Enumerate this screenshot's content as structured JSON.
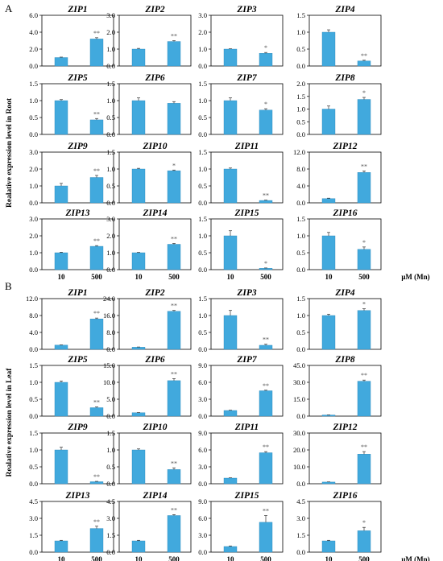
{
  "chart_data": {
    "type": "bar",
    "bar_color": "#41a9dd",
    "categories": [
      "10",
      "500"
    ],
    "unit_label": "μM (Mn)",
    "sections": [
      {
        "letter": "A",
        "ylabel": "Realative expression level in Root",
        "plots": [
          {
            "title": "ZIP1",
            "values": [
              1.0,
              3.2
            ],
            "errors": [
              0.05,
              0.15
            ],
            "sig": [
              "",
              "**"
            ],
            "ticks": [
              "0.0",
              "2.0",
              "4.0",
              "6.0"
            ],
            "ylim": [
              0,
              6
            ]
          },
          {
            "title": "ZIP2",
            "values": [
              1.0,
              1.45
            ],
            "errors": [
              0.04,
              0.05
            ],
            "sig": [
              "",
              "**"
            ],
            "ticks": [
              "0.0",
              "1.0",
              "2.0",
              "3.0"
            ],
            "ylim": [
              0,
              3
            ]
          },
          {
            "title": "ZIP3",
            "values": [
              1.0,
              0.75
            ],
            "errors": [
              0.02,
              0.05
            ],
            "sig": [
              "",
              "*"
            ],
            "ticks": [
              "0.0",
              "1.0",
              "2.0",
              "3.0"
            ],
            "ylim": [
              0,
              3
            ]
          },
          {
            "title": "ZIP4",
            "values": [
              1.0,
              0.15
            ],
            "errors": [
              0.07,
              0.02
            ],
            "sig": [
              "",
              "**"
            ],
            "ticks": [
              "0.0",
              "0.5",
              "1.0",
              "1.5"
            ],
            "ylim": [
              0,
              1.5
            ]
          },
          {
            "title": "ZIP5",
            "values": [
              1.0,
              0.43
            ],
            "errors": [
              0.03,
              0.04
            ],
            "sig": [
              "",
              "**"
            ],
            "ticks": [
              "0.0",
              "0.5",
              "1.0",
              "1.5"
            ],
            "ylim": [
              0,
              1.5
            ]
          },
          {
            "title": "ZIP6",
            "values": [
              1.0,
              0.92
            ],
            "errors": [
              0.08,
              0.05
            ],
            "sig": [
              "",
              ""
            ],
            "ticks": [
              "0.0",
              "0.5",
              "1.0",
              "1.5"
            ],
            "ylim": [
              0,
              1.5
            ]
          },
          {
            "title": "ZIP7",
            "values": [
              1.0,
              0.72
            ],
            "errors": [
              0.08,
              0.04
            ],
            "sig": [
              "",
              "*"
            ],
            "ticks": [
              "0.0",
              "0.5",
              "1.0",
              "1.5"
            ],
            "ylim": [
              0,
              1.5
            ]
          },
          {
            "title": "ZIP8",
            "values": [
              1.0,
              1.38
            ],
            "errors": [
              0.12,
              0.08
            ],
            "sig": [
              "",
              "*"
            ],
            "ticks": [
              "0.0",
              "0.5",
              "1.0",
              "1.5",
              "2.0"
            ],
            "ylim": [
              0,
              2
            ]
          },
          {
            "title": "ZIP9",
            "values": [
              1.0,
              1.5
            ],
            "errors": [
              0.15,
              0.12
            ],
            "sig": [
              "",
              "**"
            ],
            "ticks": [
              "0.0",
              "1.0",
              "2.0",
              "3.0"
            ],
            "ylim": [
              0,
              3
            ]
          },
          {
            "title": "ZIP10",
            "values": [
              1.0,
              0.95
            ],
            "errors": [
              0.02,
              0.02
            ],
            "sig": [
              "",
              "*"
            ],
            "ticks": [
              "0.0",
              "0.5",
              "1.0",
              "1.5"
            ],
            "ylim": [
              0,
              1.5
            ]
          },
          {
            "title": "ZIP11",
            "values": [
              1.0,
              0.07
            ],
            "errors": [
              0.03,
              0.01
            ],
            "sig": [
              "",
              "**"
            ],
            "ticks": [
              "0.0",
              "0.5",
              "1.0",
              "1.5"
            ],
            "ylim": [
              0,
              1.5
            ]
          },
          {
            "title": "ZIP12",
            "values": [
              1.0,
              7.2
            ],
            "errors": [
              0.1,
              0.35
            ],
            "sig": [
              "",
              "**"
            ],
            "ticks": [
              "0.0",
              "4.0",
              "8.0",
              "12.0"
            ],
            "ylim": [
              0,
              12
            ]
          },
          {
            "title": "ZIP13",
            "values": [
              1.0,
              1.38
            ],
            "errors": [
              0.03,
              0.04
            ],
            "sig": [
              "",
              "**"
            ],
            "ticks": [
              "0.0",
              "1.0",
              "2.0",
              "3.0"
            ],
            "ylim": [
              0,
              3
            ]
          },
          {
            "title": "ZIP14",
            "values": [
              1.0,
              1.5
            ],
            "errors": [
              0.02,
              0.05
            ],
            "sig": [
              "",
              "**"
            ],
            "ticks": [
              "0.0",
              "1.0",
              "2.0",
              "3.0"
            ],
            "ylim": [
              0,
              3
            ]
          },
          {
            "title": "ZIP15",
            "values": [
              1.0,
              0.04
            ],
            "errors": [
              0.15,
              0.01
            ],
            "sig": [
              "",
              "*"
            ],
            "ticks": [
              "0.0",
              "0.5",
              "1.0",
              "1.5"
            ],
            "ylim": [
              0,
              1.5
            ]
          },
          {
            "title": "ZIP16",
            "values": [
              1.0,
              0.6
            ],
            "errors": [
              0.1,
              0.07
            ],
            "sig": [
              "",
              "*"
            ],
            "ticks": [
              "0.0",
              "0.5",
              "1.0",
              "1.5"
            ],
            "ylim": [
              0,
              1.5
            ]
          }
        ]
      },
      {
        "letter": "B",
        "ylabel": "Realative expression level in Leaf",
        "plots": [
          {
            "title": "ZIP1",
            "values": [
              1.0,
              7.2
            ],
            "errors": [
              0.05,
              0.2
            ],
            "sig": [
              "",
              "**"
            ],
            "ticks": [
              "0.0",
              "4.0",
              "8.0",
              "12.0"
            ],
            "ylim": [
              0,
              12
            ]
          },
          {
            "title": "ZIP2",
            "values": [
              1.0,
              18.0
            ],
            "errors": [
              0.1,
              0.4
            ],
            "sig": [
              "",
              "**"
            ],
            "ticks": [
              "0.0",
              "8.0",
              "16.0",
              "24.0"
            ],
            "ylim": [
              0,
              24
            ]
          },
          {
            "title": "ZIP3",
            "values": [
              1.0,
              0.12
            ],
            "errors": [
              0.15,
              0.03
            ],
            "sig": [
              "",
              "**"
            ],
            "ticks": [
              "0.0",
              "0.5",
              "1.0",
              "1.5"
            ],
            "ylim": [
              0,
              1.5
            ]
          },
          {
            "title": "ZIP4",
            "values": [
              1.0,
              1.15
            ],
            "errors": [
              0.04,
              0.05
            ],
            "sig": [
              "",
              "*"
            ],
            "ticks": [
              "0.0",
              "0.5",
              "1.0",
              "1.5"
            ],
            "ylim": [
              0,
              1.5
            ]
          },
          {
            "title": "ZIP5",
            "values": [
              1.0,
              0.25
            ],
            "errors": [
              0.04,
              0.02
            ],
            "sig": [
              "",
              "**"
            ],
            "ticks": [
              "0.0",
              "0.5",
              "1.0",
              "1.5"
            ],
            "ylim": [
              0,
              1.5
            ]
          },
          {
            "title": "ZIP6",
            "values": [
              1.0,
              10.5
            ],
            "errors": [
              0.05,
              0.6
            ],
            "sig": [
              "",
              "**"
            ],
            "ticks": [
              "0.0",
              "5.0",
              "10.0",
              "15.0"
            ],
            "ylim": [
              0,
              15
            ]
          },
          {
            "title": "ZIP7",
            "values": [
              1.0,
              4.5
            ],
            "errors": [
              0.05,
              0.1
            ],
            "sig": [
              "",
              "**"
            ],
            "ticks": [
              "0.0",
              "3.0",
              "6.0",
              "9.0"
            ],
            "ylim": [
              0,
              9
            ]
          },
          {
            "title": "ZIP8",
            "values": [
              1.0,
              31.0
            ],
            "errors": [
              0.1,
              1.0
            ],
            "sig": [
              "",
              "**"
            ],
            "ticks": [
              "0.0",
              "15.0",
              "30.0",
              "45.0"
            ],
            "ylim": [
              0,
              45
            ]
          },
          {
            "title": "ZIP9",
            "values": [
              1.0,
              0.06
            ],
            "errors": [
              0.08,
              0.01
            ],
            "sig": [
              "",
              "**"
            ],
            "ticks": [
              "0.0",
              "0.5",
              "1.0",
              "1.5"
            ],
            "ylim": [
              0,
              1.5
            ]
          },
          {
            "title": "ZIP10",
            "values": [
              1.0,
              0.42
            ],
            "errors": [
              0.03,
              0.05
            ],
            "sig": [
              "",
              "**"
            ],
            "ticks": [
              "0.0",
              "0.5",
              "1.0",
              "1.5"
            ],
            "ylim": [
              0,
              1.5
            ]
          },
          {
            "title": "ZIP11",
            "values": [
              1.0,
              5.5
            ],
            "errors": [
              0.05,
              0.2
            ],
            "sig": [
              "",
              "**"
            ],
            "ticks": [
              "0.0",
              "3.0",
              "6.0",
              "9.0"
            ],
            "ylim": [
              0,
              9
            ]
          },
          {
            "title": "ZIP12",
            "values": [
              1.0,
              17.5
            ],
            "errors": [
              0.1,
              1.5
            ],
            "sig": [
              "",
              "**"
            ],
            "ticks": [
              "0.0",
              "10.0",
              "20.0",
              "30.0"
            ],
            "ylim": [
              0,
              30
            ]
          },
          {
            "title": "ZIP13",
            "values": [
              1.0,
              2.1
            ],
            "errors": [
              0.05,
              0.2
            ],
            "sig": [
              "",
              "**"
            ],
            "ticks": [
              "0.0",
              "1.5",
              "3.0",
              "4.5"
            ],
            "ylim": [
              0,
              4.5
            ]
          },
          {
            "title": "ZIP14",
            "values": [
              1.0,
              3.25
            ],
            "errors": [
              0.05,
              0.08
            ],
            "sig": [
              "",
              "**"
            ],
            "ticks": [
              "0.0",
              "1.5",
              "3.0",
              "4.5"
            ],
            "ylim": [
              0,
              4.5
            ]
          },
          {
            "title": "ZIP15",
            "values": [
              1.0,
              5.3
            ],
            "errors": [
              0.1,
              1.2
            ],
            "sig": [
              "",
              "**"
            ],
            "ticks": [
              "0.0",
              "3.0",
              "6.0",
              "9.0"
            ],
            "ylim": [
              0,
              9
            ]
          },
          {
            "title": "ZIP16",
            "values": [
              1.0,
              1.9
            ],
            "errors": [
              0.05,
              0.3
            ],
            "sig": [
              "",
              "*"
            ],
            "ticks": [
              "0.0",
              "1.5",
              "3.0",
              "4.5"
            ],
            "ylim": [
              0,
              4.5
            ]
          }
        ]
      }
    ]
  }
}
